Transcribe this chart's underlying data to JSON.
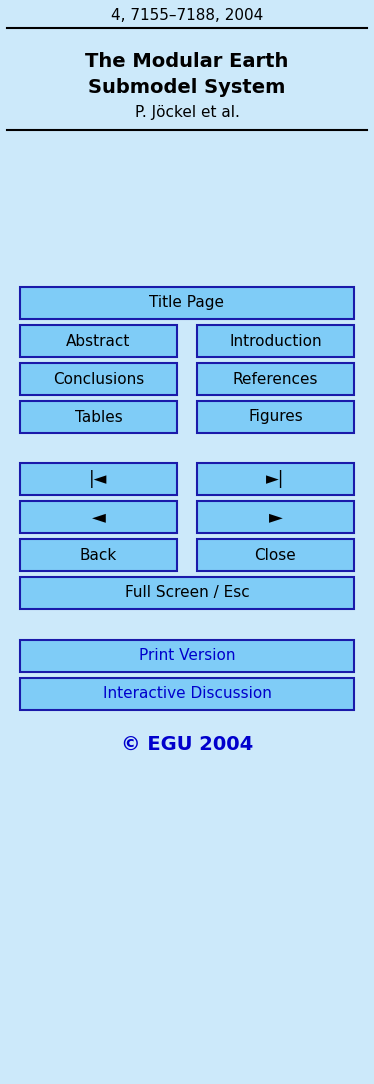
{
  "bg_color": "#cce9fa",
  "top_text": "4, 7155–7188, 2004",
  "title_line1": "The Modular Earth",
  "title_line2": "Submodel System",
  "author": "P. Jöckel et al.",
  "button_bg": "#7fccf7",
  "button_border": "#1a1aaa",
  "button_text_color": "#000000",
  "blue_text_color": "#0000cc",
  "print_version": "Print Version",
  "interactive": "Interactive Discussion",
  "copyright": "© EGU 2004"
}
